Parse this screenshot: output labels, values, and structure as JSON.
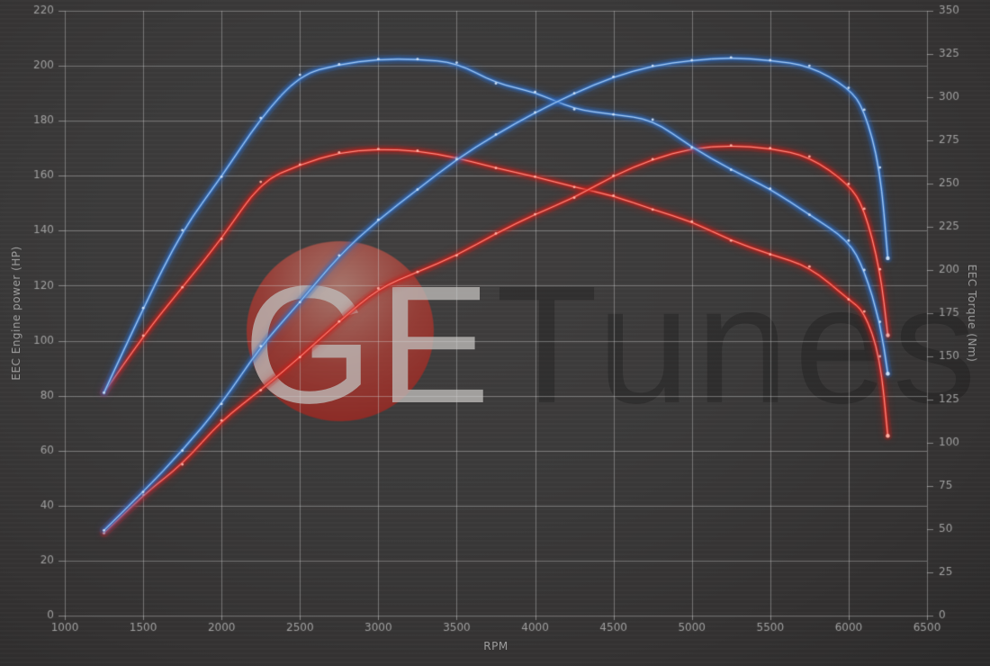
{
  "watermark": {
    "ge": "GE",
    "tunes": "Tunes"
  },
  "chart_data": {
    "type": "line",
    "xlabel": "RPM",
    "ylabel_left": "EEC Engine power (HP)",
    "ylabel_right": "EEC Torque (Nm)",
    "grid": true,
    "legend": "none",
    "x_range": [
      1000,
      6500
    ],
    "x_ticks": [
      1000,
      1500,
      2000,
      2500,
      3000,
      3500,
      4000,
      4500,
      5000,
      5500,
      6000,
      6500
    ],
    "y_left": {
      "range": [
        0,
        220
      ],
      "ticks": [
        0,
        20,
        40,
        60,
        80,
        100,
        120,
        140,
        160,
        180,
        200,
        220
      ]
    },
    "y_right": {
      "range": [
        0,
        350
      ],
      "ticks": [
        0,
        25,
        50,
        75,
        100,
        125,
        150,
        175,
        200,
        225,
        250,
        275,
        300,
        325,
        350
      ]
    },
    "series": [
      {
        "name": "torque-red",
        "axis": "right",
        "main": "#df2f26",
        "glow": "#c81f1a",
        "core": "#ffb4a8",
        "points": [
          [
            1250,
            129
          ],
          [
            1500,
            162
          ],
          [
            1750,
            190
          ],
          [
            2000,
            218
          ],
          [
            2250,
            251
          ],
          [
            2500,
            261
          ],
          [
            2750,
            268
          ],
          [
            3000,
            270
          ],
          [
            3250,
            269
          ],
          [
            3500,
            265
          ],
          [
            3750,
            259
          ],
          [
            4000,
            254
          ],
          [
            4250,
            248
          ],
          [
            4500,
            243
          ],
          [
            4750,
            235
          ],
          [
            5000,
            228
          ],
          [
            5250,
            217
          ],
          [
            5500,
            209
          ],
          [
            5750,
            202
          ],
          [
            6000,
            183
          ],
          [
            6100,
            176
          ],
          [
            6200,
            150
          ],
          [
            6250,
            104
          ]
        ]
      },
      {
        "name": "power-red",
        "axis": "left",
        "main": "#df2f26",
        "glow": "#c81f1a",
        "core": "#ffb4a8",
        "points": [
          [
            1250,
            30
          ],
          [
            1500,
            44
          ],
          [
            1750,
            55
          ],
          [
            2000,
            71
          ],
          [
            2250,
            82
          ],
          [
            2500,
            94
          ],
          [
            2750,
            107
          ],
          [
            3000,
            119
          ],
          [
            3250,
            125
          ],
          [
            3500,
            131
          ],
          [
            3750,
            139
          ],
          [
            4000,
            146
          ],
          [
            4250,
            152
          ],
          [
            4500,
            160
          ],
          [
            4750,
            166
          ],
          [
            5000,
            170
          ],
          [
            5250,
            171
          ],
          [
            5500,
            170
          ],
          [
            5750,
            167
          ],
          [
            6000,
            157
          ],
          [
            6100,
            148
          ],
          [
            6200,
            126
          ],
          [
            6250,
            102
          ]
        ]
      },
      {
        "name": "torque-blue",
        "axis": "right",
        "main": "#4688d8",
        "glow": "#2f6fc8",
        "core": "#cfe2f7",
        "points": [
          [
            1250,
            129
          ],
          [
            1500,
            178
          ],
          [
            1750,
            223
          ],
          [
            2000,
            254
          ],
          [
            2250,
            288
          ],
          [
            2500,
            313
          ],
          [
            2750,
            319
          ],
          [
            3000,
            322
          ],
          [
            3250,
            322
          ],
          [
            3500,
            320
          ],
          [
            3750,
            308
          ],
          [
            4000,
            303
          ],
          [
            4250,
            293
          ],
          [
            4500,
            290
          ],
          [
            4750,
            287
          ],
          [
            5000,
            271
          ],
          [
            5250,
            258
          ],
          [
            5500,
            247
          ],
          [
            5750,
            232
          ],
          [
            6000,
            217
          ],
          [
            6100,
            200
          ],
          [
            6200,
            170
          ],
          [
            6250,
            140
          ]
        ]
      },
      {
        "name": "power-blue",
        "axis": "left",
        "main": "#4688d8",
        "glow": "#2f6fc8",
        "core": "#cfe2f7",
        "points": [
          [
            1250,
            31
          ],
          [
            1500,
            45
          ],
          [
            1750,
            60
          ],
          [
            2000,
            77
          ],
          [
            2250,
            98
          ],
          [
            2500,
            114
          ],
          [
            2750,
            131
          ],
          [
            3000,
            144
          ],
          [
            3250,
            155
          ],
          [
            3500,
            166
          ],
          [
            3750,
            175
          ],
          [
            4000,
            183
          ],
          [
            4250,
            190
          ],
          [
            4500,
            196
          ],
          [
            4750,
            200
          ],
          [
            5000,
            202
          ],
          [
            5250,
            203
          ],
          [
            5500,
            202
          ],
          [
            5750,
            200
          ],
          [
            6000,
            192
          ],
          [
            6100,
            184
          ],
          [
            6200,
            163
          ],
          [
            6250,
            130
          ]
        ]
      }
    ]
  }
}
